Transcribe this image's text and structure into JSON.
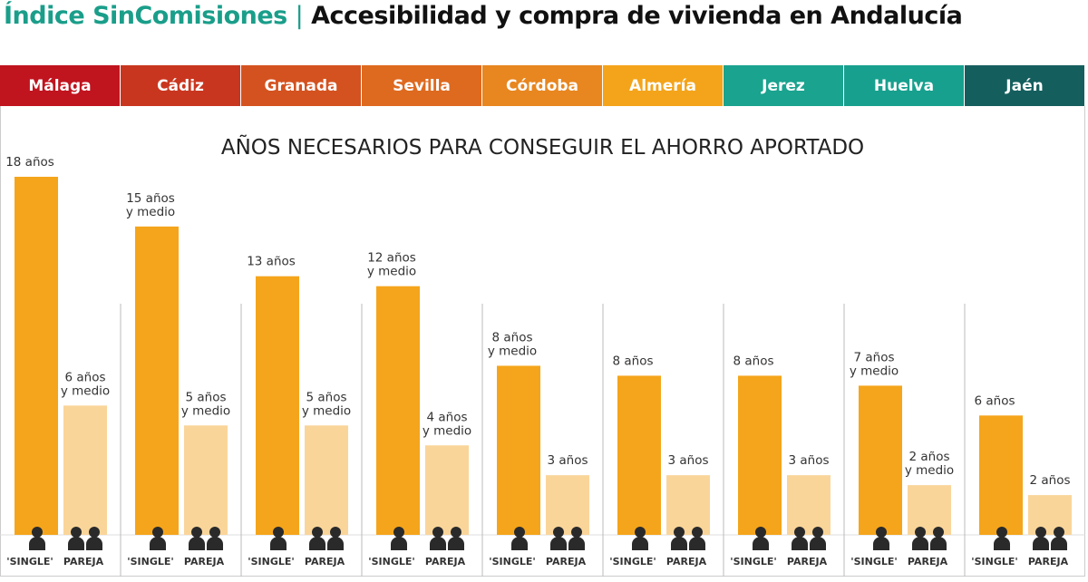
{
  "title": {
    "brand": "Índice SinComisiones",
    "separator": "|",
    "main": "Accesibilidad y compra de vivienda en Andalucía"
  },
  "colors": {
    "single": "#f5a51b",
    "pareja": "#fad59a",
    "icon": "#2a2a2a",
    "brand": "#1a9e8a"
  },
  "chart_data": {
    "type": "bar",
    "title": "AÑOS NECESARIOS PARA CONSEGUIR EL AHORRO APORTADO",
    "categories": [
      "Málaga",
      "Cádiz",
      "Granada",
      "Sevilla",
      "Córdoba",
      "Almería",
      "Jerez",
      "Huelva",
      "Jaén"
    ],
    "category_colors": [
      "#c0141f",
      "#c9361f",
      "#d4521f",
      "#de6a1f",
      "#e8861f",
      "#f4a41a",
      "#1aa38f",
      "#17a08e",
      "#155e5e"
    ],
    "series": [
      {
        "name": "'SINGLE'",
        "icon": "person-icon",
        "values": [
          18,
          15.5,
          13,
          12.5,
          8.5,
          8,
          8,
          7.5,
          6
        ],
        "labels": [
          "18 años",
          "15 años\ny medio",
          "13 años",
          "12 años\ny medio",
          "8 años\ny medio",
          "8 años",
          "8 años",
          "7 años\ny medio",
          "6 años"
        ]
      },
      {
        "name": "PAREJA",
        "icon": "couple-icon",
        "values": [
          6.5,
          5.5,
          5.5,
          4.5,
          3,
          3,
          3,
          2.5,
          2
        ],
        "labels": [
          "6 años\ny medio",
          "5 años\ny medio",
          "5 años\ny medio",
          "4 años\ny medio",
          "3 años",
          "3 años",
          "3 años",
          "2 años\ny medio",
          "2 años"
        ]
      }
    ],
    "ylim": [
      0,
      18
    ],
    "grid": false
  }
}
